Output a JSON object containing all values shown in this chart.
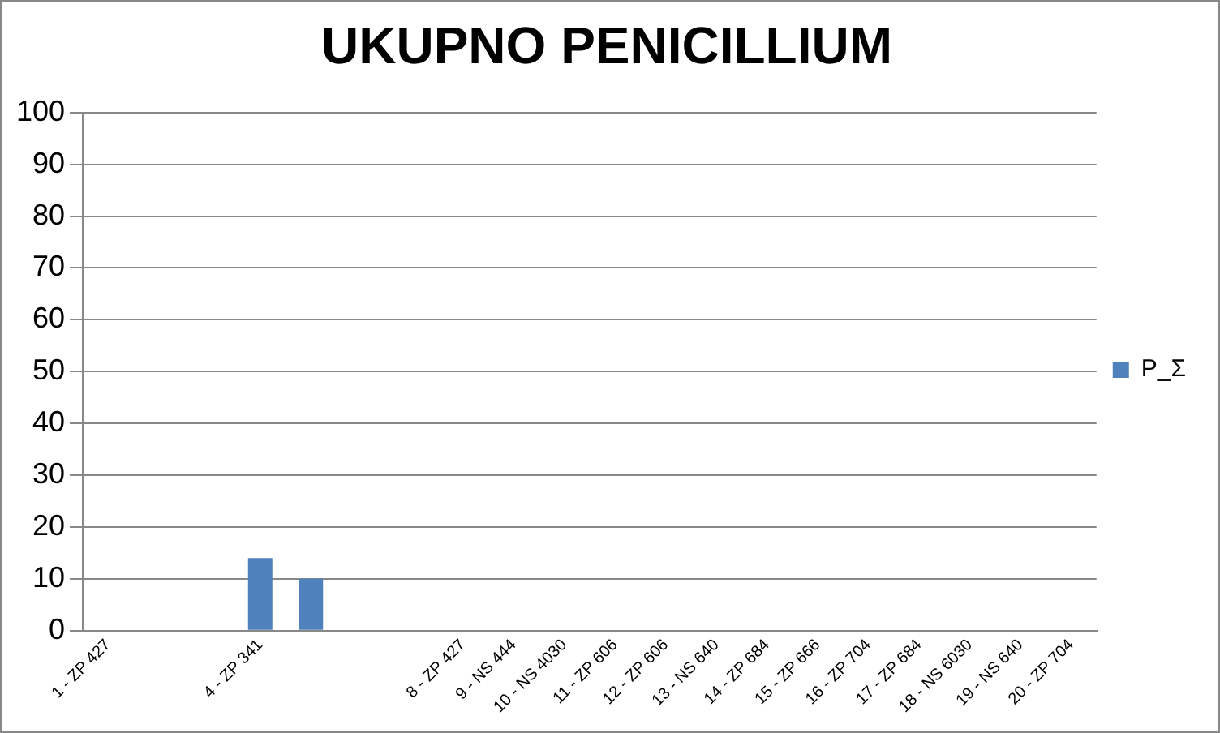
{
  "chart_data": {
    "type": "bar",
    "title": "UKUPNO PENICILLIUM",
    "categories": [
      "1 - ZP 427",
      null,
      null,
      "4 - ZP 341",
      null,
      null,
      null,
      "8 - ZP 427",
      "9 - NS 444",
      "10 - NS 4030",
      "11 - ZP 606",
      "12 - ZP 606",
      "13 - NS 640",
      "14 - ZP 684",
      "15 - ZP 666",
      "16 - ZP 704",
      "17 - ZP 684",
      "18 - NS 6030",
      "19 - NS 640",
      "20 - ZP 704"
    ],
    "series": [
      {
        "name": "P_Σ",
        "color": "#4f81bd",
        "values": [
          0,
          0,
          0,
          14,
          10,
          0,
          0,
          0,
          0,
          0,
          0,
          0,
          0,
          0,
          0,
          0,
          0,
          0,
          0,
          0
        ]
      }
    ],
    "ylim": [
      0,
      100
    ],
    "yticks": [
      0,
      10,
      20,
      30,
      40,
      50,
      60,
      70,
      80,
      90,
      100
    ],
    "grid": "y",
    "legend": "right"
  }
}
